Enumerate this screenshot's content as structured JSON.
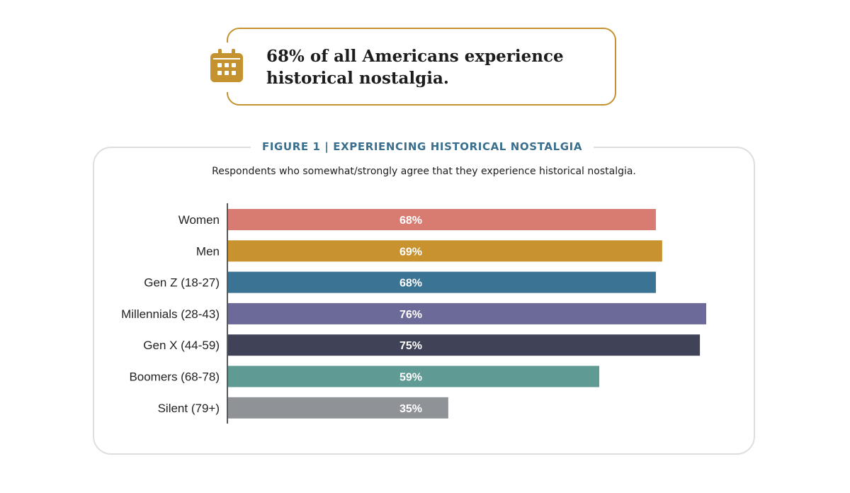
{
  "callout": {
    "icon": "calendar-icon",
    "text": "68% of all Americans experience historical nostalgia."
  },
  "colors": {
    "accent_gold": "#c4922f",
    "figure_title": "#3a6f8e",
    "panel_border": "#dedede"
  },
  "chart_data": {
    "type": "bar",
    "orientation": "horizontal",
    "title": "FIGURE 1 | EXPERIENCING HISTORICAL NOSTALGIA",
    "subtitle": "Respondents who somewhat/strongly agree that they experience historical nostalgia.",
    "categories": [
      "Women",
      "Men",
      "Gen Z (18-27)",
      "Millennials (28-43)",
      "Gen X (44-59)",
      "Boomers (68-78)",
      "Silent (79+)"
    ],
    "values": [
      68,
      69,
      68,
      76,
      75,
      59,
      35
    ],
    "data_labels": [
      "68%",
      "69%",
      "68%",
      "76%",
      "75%",
      "59%",
      "35%"
    ],
    "colors": [
      "#d87b71",
      "#c8922f",
      "#3a7393",
      "#6c6a98",
      "#404257",
      "#5f9b94",
      "#8f9398"
    ],
    "unit": "%",
    "xlim": [
      0,
      76
    ],
    "grid": false,
    "legend": "none"
  }
}
